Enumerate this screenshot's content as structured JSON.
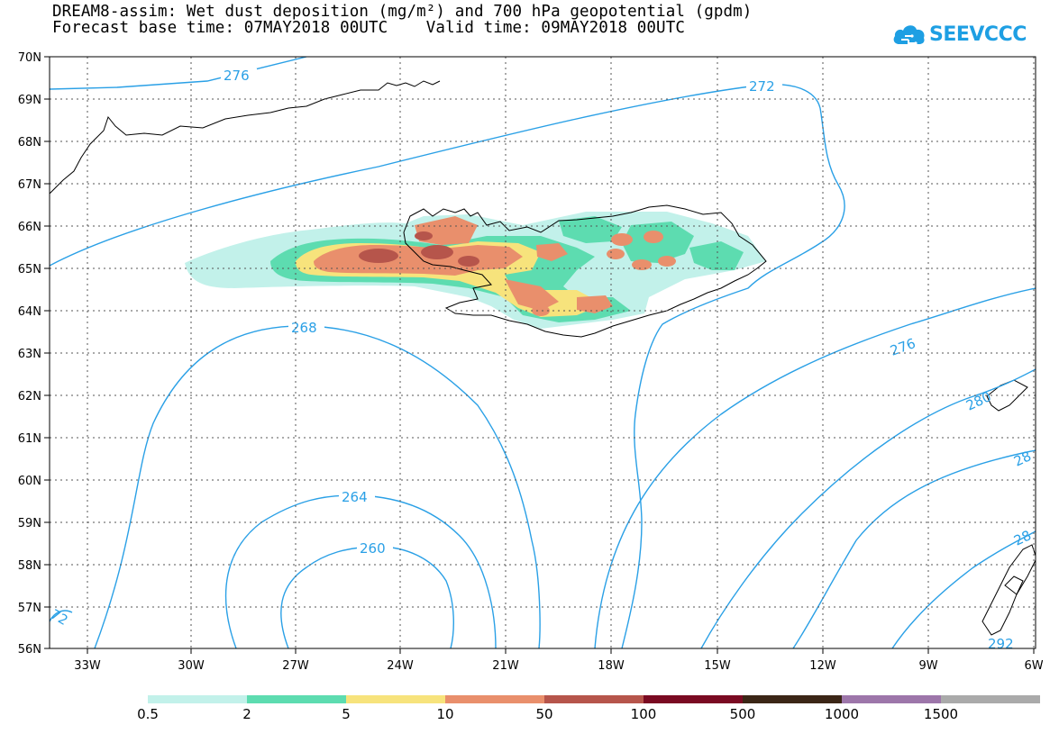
{
  "header": {
    "title_line1": "DREAM8-assim: Wet dust deposition (mg/m²) and 700 hPa geopotential (gpdm)",
    "title_line2": "Forecast base time: 07MAY2018 00UTC    Valid time: 09MAY2018 00UTC"
  },
  "logo": {
    "text": "SEEVCCC",
    "icon": "cloud-icon",
    "color": "#1e9fe3"
  },
  "map": {
    "lat_labels": [
      "70N",
      "69N",
      "68N",
      "67N",
      "66N",
      "65N",
      "64N",
      "63N",
      "62N",
      "61N",
      "60N",
      "59N",
      "58N",
      "57N",
      "56N"
    ],
    "lon_labels": [
      "33W",
      "30W",
      "27W",
      "24W",
      "21W",
      "18W",
      "15W",
      "12W",
      "9W",
      "6W"
    ],
    "contour_labels": [
      "276",
      "272",
      "268",
      "264",
      "260",
      "276",
      "280",
      "28",
      "28",
      "72",
      "292"
    ],
    "contour_color": "#2aa0e6"
  },
  "colorbar": {
    "labels": [
      "0.5",
      "2",
      "5",
      "10",
      "50",
      "100",
      "500",
      "1000",
      "1500"
    ],
    "colors": [
      "#c2f1ea",
      "#5ddcb0",
      "#f7e37c",
      "#e98f6c",
      "#b6554b",
      "#7a0a22",
      "#3b2616",
      "#9d76aa",
      "#aaaaaa"
    ]
  }
}
